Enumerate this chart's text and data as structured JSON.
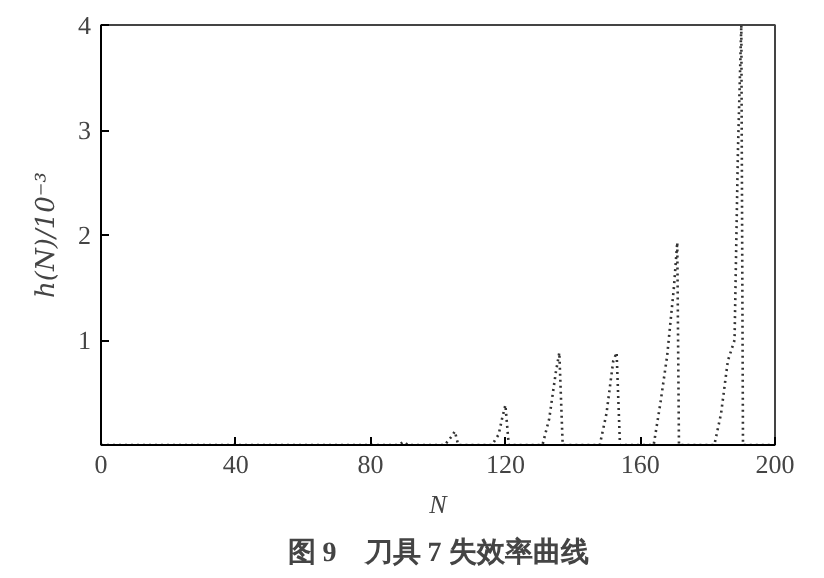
{
  "chart_data": {
    "type": "line",
    "title": "图 9　刀具 7 失效率曲线",
    "xlabel": "N",
    "ylabel": "h(N)/10⁻³",
    "x": [
      0,
      88,
      90,
      91,
      102,
      104,
      105,
      106,
      116,
      118,
      119,
      120,
      121,
      131,
      133,
      135,
      136,
      137,
      148,
      150,
      152,
      153,
      154,
      164,
      166,
      168,
      170,
      171,
      171.5,
      182,
      184,
      186,
      188,
      189,
      190,
      190.5,
      200
    ],
    "series": [
      {
        "color": "#333333",
        "values": [
          0,
          0,
          0.03,
          0,
          0,
          0.08,
          0.13,
          0,
          0,
          0.1,
          0.25,
          0.38,
          0,
          0,
          0.25,
          0.7,
          0.88,
          0,
          0,
          0.3,
          0.8,
          0.88,
          0,
          0,
          0.4,
          0.85,
          1.5,
          1.93,
          0,
          0,
          0.3,
          0.8,
          1.0,
          2.8,
          4.0,
          0,
          0
        ]
      }
    ],
    "xlim": [
      0,
      200
    ],
    "ylim": [
      0,
      4
    ],
    "xticks": [
      0,
      40,
      80,
      120,
      160,
      200
    ],
    "yticks": [
      1,
      2,
      3,
      4
    ],
    "grid": false,
    "line_style": "dotted",
    "marker": "none"
  }
}
